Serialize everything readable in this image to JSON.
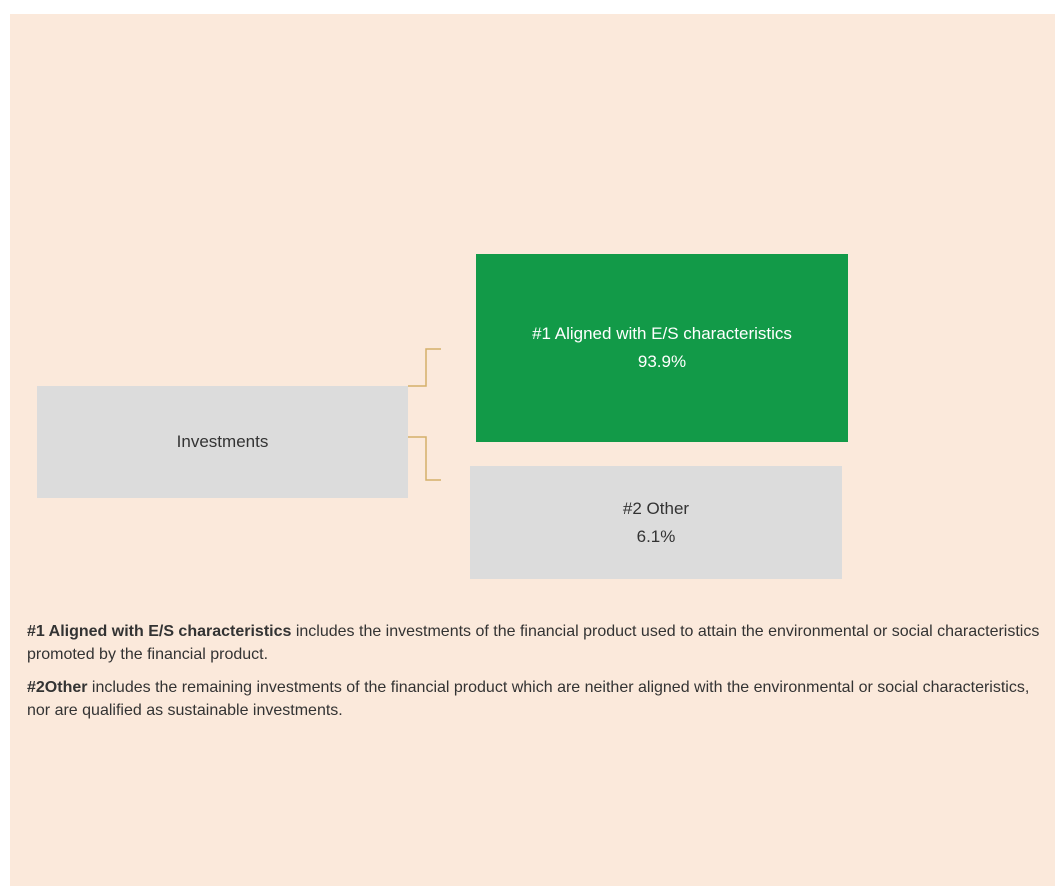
{
  "diagram": {
    "nodes": [
      {
        "label": "Investments"
      },
      {
        "label": "#1 Aligned with E/S characteristics",
        "share": "93.9%"
      },
      {
        "label": "#2 Other",
        "share": "6.1%"
      }
    ],
    "notes": [
      {
        "term": "#1 Aligned with E/S characteristics",
        "text": "includes the investments of the financial product used to attain the environmental or social characteristics promoted by the financial product."
      },
      {
        "term": "#2Other",
        "text": "includes the remaining investments of the financial product which are neither aligned with the environmental or social characteristics, nor are qualified as sustainable investments."
      }
    ]
  }
}
